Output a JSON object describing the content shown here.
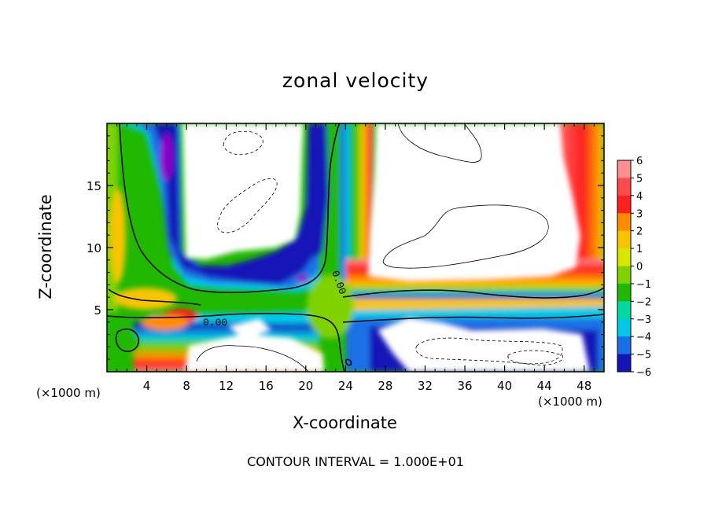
{
  "chart_data": {
    "type": "heatmap",
    "title": "zonal velocity",
    "xlabel": "X-coordinate",
    "ylabel": "Z-coordinate",
    "x_unit": "(×1000 m)",
    "x_ticks": [
      "4",
      "8",
      "12",
      "16",
      "20",
      "24",
      "28",
      "32",
      "36",
      "40",
      "44",
      "48"
    ],
    "y_ticks": [
      "5",
      "10",
      "15"
    ],
    "xlim": [
      0,
      50
    ],
    "ylim": [
      0,
      20
    ],
    "colorbar": {
      "levels": [
        "6",
        "5",
        "4",
        "3",
        "2",
        "1",
        "0",
        "−1",
        "−2",
        "−3",
        "−4",
        "−5",
        "−6"
      ],
      "colors": [
        "#ff8f8f",
        "#ff4a4a",
        "#ff1f1f",
        "#ff8c00",
        "#f7c400",
        "#d9e600",
        "#7fd100",
        "#20b800",
        "#00d9a0",
        "#00c8e8",
        "#1a6fe6",
        "#1414b8",
        "#8a00c8"
      ],
      "above_color": "#ffffff",
      "below_color": "#ffffff"
    },
    "contour_labels": [
      "0.00",
      "0.00"
    ],
    "contour_interval_text": "CONTOUR INTERVAL = 1.000E+01"
  }
}
